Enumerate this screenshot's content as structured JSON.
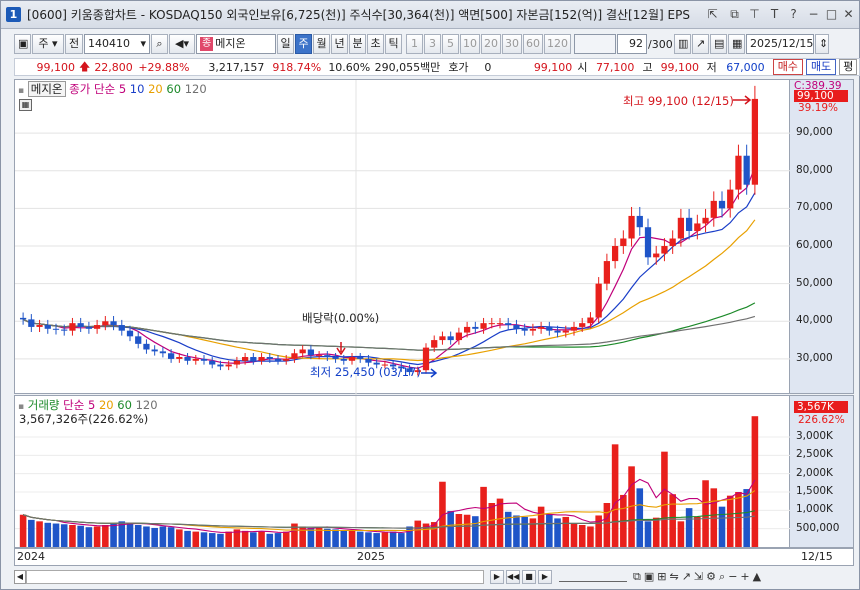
{
  "window": {
    "number": "1",
    "title": "[0600] 키움종합차트 - KOSDAQ150 외국인보유[6,725(천)] 주식수[30,364(천)] 액면[500] 자본금[152(억)] 결산[12월] EPS"
  },
  "toolbar": {
    "period_unit": "주",
    "prev_label": "전",
    "code": "140410",
    "stock_name": "메지온",
    "stock_badge": "종",
    "periods": [
      "일",
      "주",
      "월",
      "년",
      "분",
      "초",
      "틱"
    ],
    "selected_period": "주",
    "intervals": [
      "1",
      "3",
      "5",
      "10",
      "20",
      "30",
      "60",
      "120"
    ],
    "count": "92",
    "count_total": "/300",
    "date": "2025/12/15"
  },
  "quote": {
    "price": "99,100",
    "change": "22,800",
    "change_rate": "+29.88%",
    "volume": "3,217,157",
    "volume_ratio": "918.74%",
    "turnover": "10.60%",
    "amount": "290,055백만",
    "hoga_label": "호가",
    "hoga_value": "0",
    "hoga_price": "99,100",
    "open_label": "시",
    "open": "77,100",
    "high_label": "고",
    "high": "99,100",
    "low_label": "저",
    "low": "67,000",
    "buy_label": "매수",
    "sell_label": "매도",
    "pyeong_label": "평"
  },
  "price_panel": {
    "name_label": "메지온",
    "ma_label": "종가 단순",
    "ma_periods": [
      "5",
      "10",
      "20",
      "60",
      "120"
    ],
    "ma_colors": [
      "#c0007a",
      "#1a3ec8",
      "#e8a000",
      "#1d8a2a",
      "#707070"
    ],
    "dividend_note": "배당락(0.00%)",
    "high_note": "최고 99,100 (12/15)",
    "low_note": "최저 25,450 (03/17)",
    "cur_price_badge": "99,100",
    "cur_pct_badge": "39.19%",
    "top_label": "C:389.39",
    "y_ticks": [
      "90,000",
      "80,000",
      "70,000",
      "60,000",
      "50,000",
      "40,000",
      "30,000"
    ]
  },
  "volume_panel": {
    "name_label": "거래량",
    "ma_label": "단순",
    "ma_periods": [
      "5",
      "20",
      "60",
      "120"
    ],
    "value_label": "3,567,326주(226.62%)",
    "badge_value": "3,567K",
    "badge_pct": "226.62%",
    "y_ticks": [
      "3,000K",
      "2,500K",
      "2,000K",
      "1,500K",
      "1,000K",
      "500,000"
    ]
  },
  "x_axis": {
    "labels": [
      "2024",
      "2025"
    ],
    "last_date": "12/15"
  },
  "colors": {
    "up": "#e8201c",
    "down": "#1f55c8",
    "accent": "#1c5ab7"
  },
  "chart_data": {
    "type": "candlestick",
    "interval": "weekly",
    "ohlc_series_note": "approximate weekly candles, 2024-01 to 2025-12",
    "close": [
      40500,
      38500,
      39000,
      38000,
      37800,
      37500,
      39500,
      38500,
      38000,
      39000,
      40000,
      39000,
      37500,
      36000,
      34000,
      32500,
      32000,
      31500,
      30000,
      30500,
      29500,
      30000,
      29500,
      28500,
      28000,
      28500,
      29500,
      30500,
      29500,
      30500,
      30000,
      29500,
      30000,
      31500,
      32500,
      31000,
      31000,
      30500,
      30000,
      29500,
      30500,
      30000,
      29000,
      28500,
      28500,
      28000,
      27500,
      26500,
      27000,
      33000,
      35000,
      36000,
      35000,
      37000,
      38500,
      38000,
      39500,
      39500,
      39500,
      39000,
      38000,
      37500,
      38000,
      38500,
      37500,
      37000,
      37500,
      38500,
      39500,
      41000,
      50000,
      56000,
      60000,
      62000,
      68000,
      65000,
      57000,
      58000,
      60000,
      62000,
      67500,
      64000,
      66000,
      67500,
      72000,
      70000,
      75000,
      84000,
      76300,
      99100
    ],
    "volume_k": [
      880,
      740,
      700,
      660,
      640,
      620,
      600,
      580,
      540,
      560,
      600,
      640,
      700,
      660,
      600,
      560,
      520,
      560,
      540,
      480,
      440,
      420,
      400,
      380,
      360,
      420,
      480,
      440,
      400,
      420,
      360,
      380,
      420,
      640,
      560,
      520,
      520,
      500,
      480,
      460,
      440,
      420,
      400,
      380,
      400,
      420,
      380,
      560,
      720,
      640,
      680,
      1780,
      980,
      900,
      880,
      840,
      1640,
      1200,
      1320,
      960,
      860,
      820,
      780,
      1100,
      900,
      780,
      820,
      640,
      600,
      560,
      860,
      1200,
      2800,
      1420,
      2200,
      1600,
      700,
      800,
      2600,
      1440,
      700,
      1060,
      820,
      1820,
      1600,
      1100,
      1400,
      1500,
      1580,
      3567
    ]
  }
}
